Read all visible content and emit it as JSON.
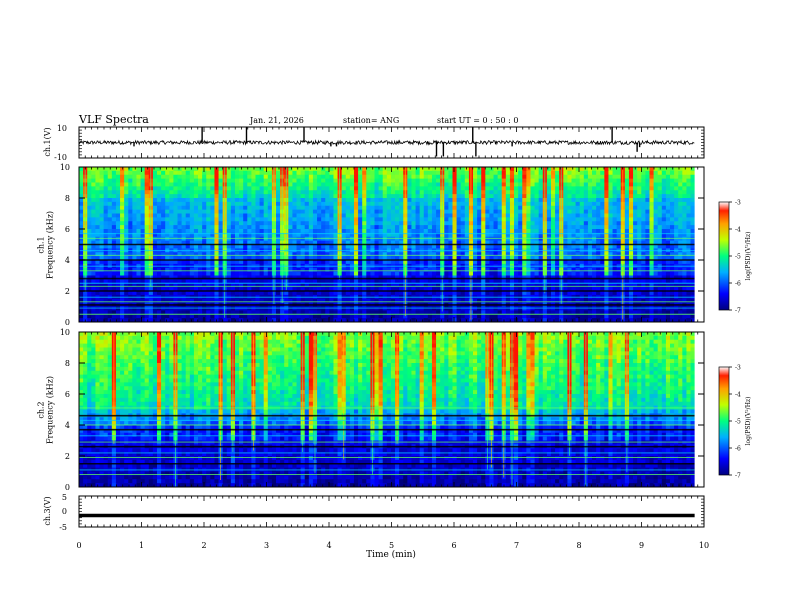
{
  "header": {
    "title": "VLF Spectra",
    "date": "Jan. 21, 2026",
    "station": "station= ANG",
    "start": "start  UT =   0 : 50 : 0"
  },
  "chart_data": [
    {
      "type": "line",
      "name": "ch1-waveform",
      "ylabel": "ch.1(V)",
      "ylim": [
        -10,
        10
      ],
      "yticks": [
        "10",
        "-10"
      ],
      "baseline": 0,
      "spikes": [
        {
          "t": 0.88,
          "v": -2.5
        },
        {
          "t": 1.97,
          "v": 10
        },
        {
          "t": 2.68,
          "v": 10
        },
        {
          "t": 3.6,
          "v": 10
        },
        {
          "t": 4.03,
          "v": -2.5
        },
        {
          "t": 4.12,
          "v": -2.5
        },
        {
          "t": 5.72,
          "v": -9
        },
        {
          "t": 5.83,
          "v": -9
        },
        {
          "t": 6.3,
          "v": 10
        },
        {
          "t": 6.35,
          "v": -9
        },
        {
          "t": 6.93,
          "v": -2.5
        },
        {
          "t": 8.53,
          "v": 10
        },
        {
          "t": 8.93,
          "v": -6
        },
        {
          "t": 8.97,
          "v": -3
        }
      ]
    },
    {
      "type": "heatmap",
      "name": "ch1-spectrogram",
      "ylabel": "ch.1\nFrequency (kHz)",
      "ylim": [
        0,
        10
      ],
      "yticks": [
        "0",
        "2",
        "4",
        "6",
        "8",
        "10"
      ],
      "colorbar": {
        "label": "log(PSD)(V²/Hz)",
        "range": [
          -7,
          -3
        ],
        "ticks": [
          "-3",
          "-4",
          "-5",
          "-6",
          "-7"
        ]
      },
      "intense_band_khz": [
        8,
        10
      ],
      "lines_khz": [
        0.5,
        0.9,
        1.1,
        1.3,
        1.6,
        2.0,
        2.3,
        2.5,
        2.8,
        3.3,
        3.6,
        4.0,
        4.3,
        4.6,
        5.0,
        5.4,
        5.7
      ]
    },
    {
      "type": "heatmap",
      "name": "ch2-spectrogram",
      "ylabel": "ch.2\nFrequency (kHz)",
      "ylim": [
        0,
        10
      ],
      "yticks": [
        "0",
        "2",
        "4",
        "6",
        "8",
        "10"
      ],
      "colorbar": {
        "label": "log(PSD)(V²/Hz)",
        "range": [
          -7,
          -3
        ],
        "ticks": [
          "-3",
          "-4",
          "-5",
          "-6",
          "-7"
        ]
      },
      "intense_band_khz": [
        5,
        10
      ],
      "lines_khz": [
        0.8,
        1.1,
        1.5,
        1.9,
        2.2,
        2.6,
        2.9,
        3.3,
        3.7,
        4.0,
        4.3,
        4.6,
        5.1
      ]
    },
    {
      "type": "line",
      "name": "ch3-waveform",
      "ylabel": "ch.3(V)",
      "ylim": [
        -5,
        5
      ],
      "yticks": [
        "5",
        "0",
        "-5"
      ],
      "baseline": -1.3
    }
  ],
  "xaxis": {
    "label": "Time (min)",
    "range": [
      0,
      10
    ],
    "ticks": [
      "0",
      "1",
      "2",
      "3",
      "4",
      "5",
      "6",
      "7",
      "8",
      "9",
      "10"
    ],
    "data_end": 9.85
  }
}
